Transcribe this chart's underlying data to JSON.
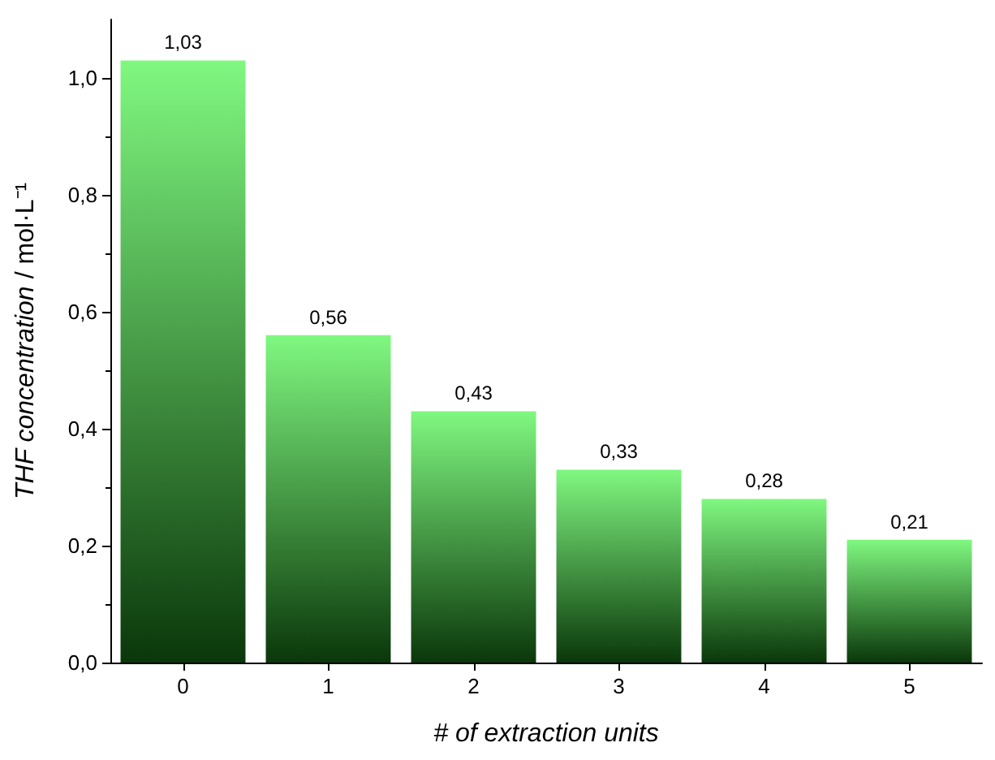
{
  "chart_data": {
    "type": "bar",
    "xlabel": "# of extraction units",
    "ylabel": "THF concentration / mol·L⁻¹",
    "categories": [
      "0",
      "1",
      "2",
      "3",
      "4",
      "5"
    ],
    "values": [
      1.03,
      0.56,
      0.43,
      0.33,
      0.28,
      0.21
    ],
    "value_labels": [
      "1,03",
      "0,56",
      "0,43",
      "0,33",
      "0,28",
      "0,21"
    ],
    "color": "#80f880",
    "ylim": [
      0,
      1.1
    ],
    "yticks": [
      {
        "value": 0,
        "label": "0,0"
      },
      {
        "value": 0.2,
        "label": "0,2"
      },
      {
        "value": 0.4,
        "label": "0,4"
      },
      {
        "value": 0.6,
        "label": "0,6"
      },
      {
        "value": 0.8,
        "label": "0,8"
      },
      {
        "value": 1.0,
        "label": "1,0"
      }
    ],
    "grid": false
  }
}
